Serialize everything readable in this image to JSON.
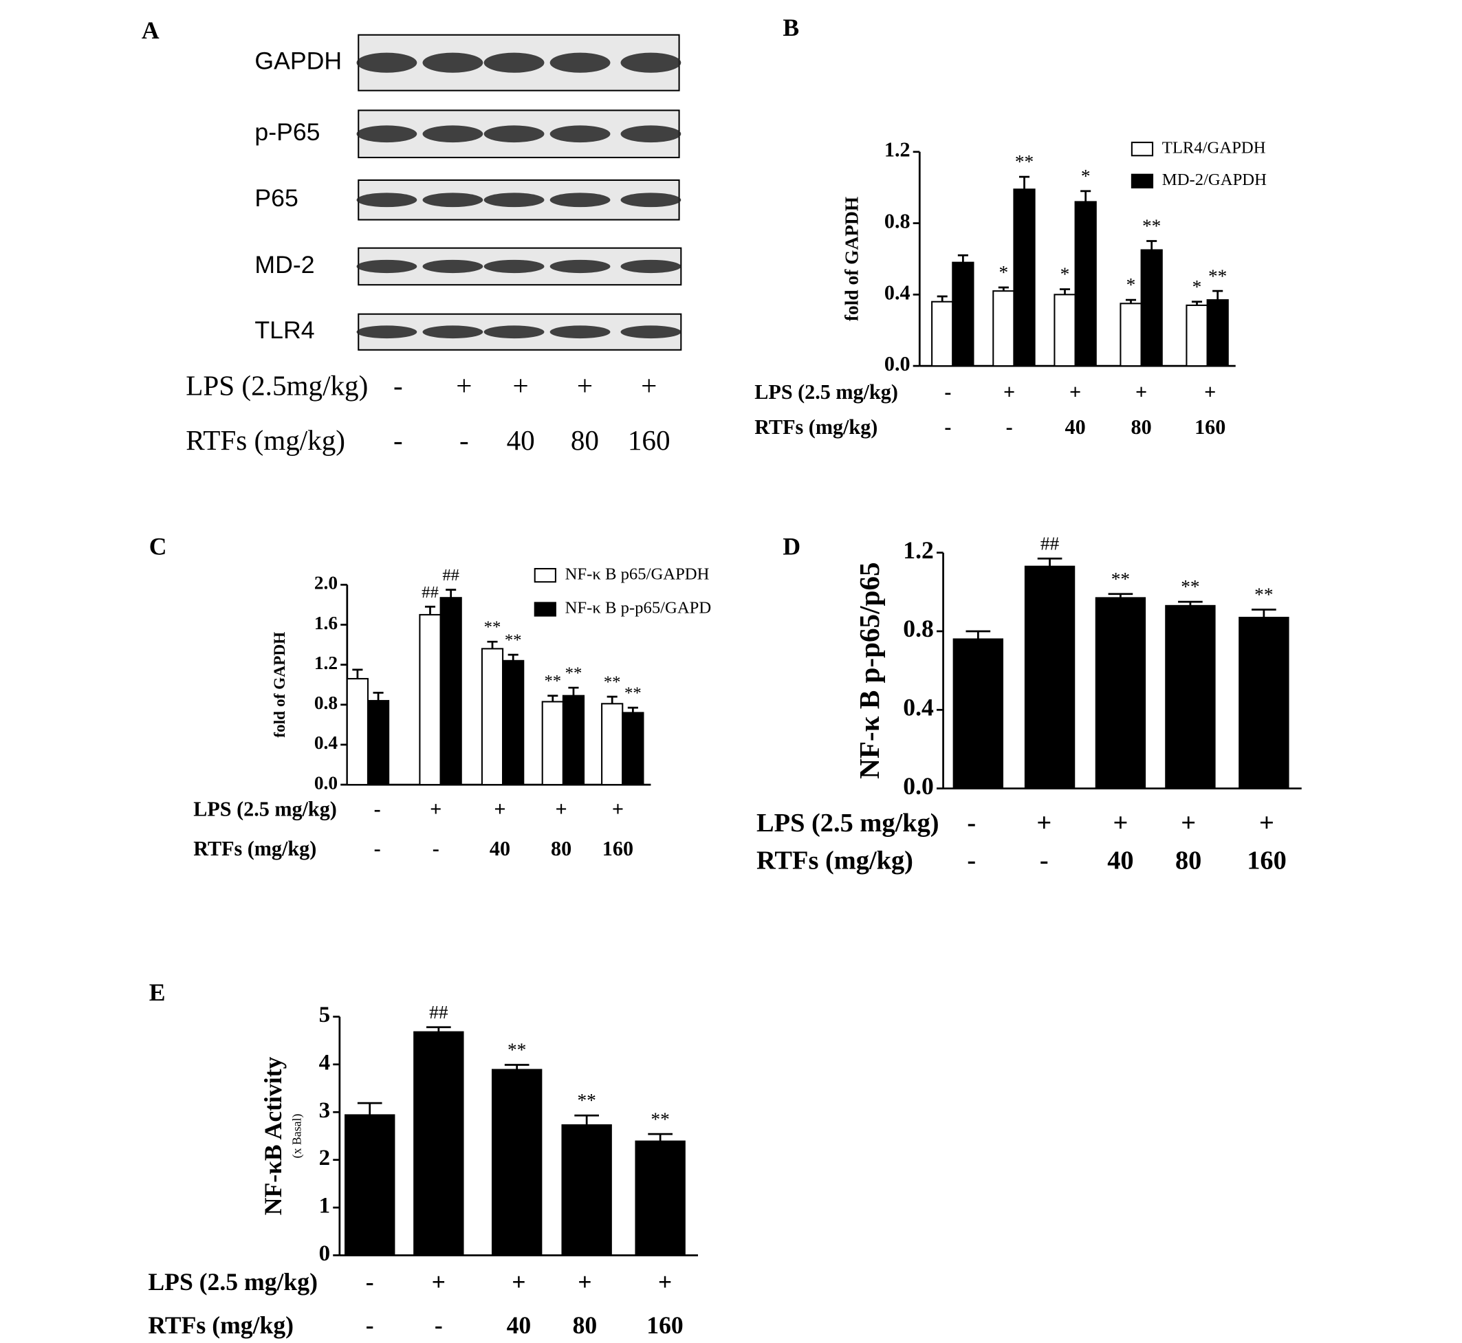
{
  "chart_data": [
    {
      "type": "blot",
      "panel": "A",
      "bands": [
        "GAPDH",
        "p-P65",
        "P65",
        "MD-2",
        "TLR4"
      ],
      "row_labels": [
        "LPS (2.5mg/kg)",
        "RTFs (mg/kg)"
      ],
      "rows": [
        [
          "-",
          "+",
          "+",
          "+",
          "+"
        ],
        [
          "-",
          "-",
          "40",
          "80",
          "160"
        ]
      ]
    },
    {
      "type": "bar",
      "panel": "B",
      "ylabel": "fold of GAPDH",
      "ylim": [
        0,
        1.2
      ],
      "yticks": [
        {
          "value": 0,
          "label": "0.0"
        },
        0.4,
        0.8,
        1.2
      ],
      "row_labels": [
        "LPS (2.5 mg/kg)",
        "RTFs (mg/kg)"
      ],
      "rows": [
        [
          "-",
          "+",
          "+",
          "+",
          "+"
        ],
        [
          "-",
          "-",
          "40",
          "80",
          "160"
        ]
      ],
      "series": [
        {
          "name": "TLR4/GAPDH",
          "color": "#ffffff",
          "values": [
            0.36,
            0.42,
            0.4,
            0.35,
            0.34
          ],
          "errors": [
            0.03,
            0.02,
            0.03,
            0.02,
            0.02
          ],
          "annotations": [
            null,
            "*",
            "*",
            "*",
            "*"
          ]
        },
        {
          "name": "MD-2/GAPDH",
          "color": "#000000",
          "values": [
            0.58,
            0.99,
            0.92,
            0.65,
            0.37
          ],
          "errors": [
            0.04,
            0.07,
            0.06,
            0.05,
            0.05
          ],
          "annotations": [
            null,
            "**",
            "*",
            "**",
            "**"
          ]
        }
      ]
    },
    {
      "type": "bar",
      "panel": "C",
      "ylabel": "fold of GAPDH",
      "ylim": [
        0,
        2.0
      ],
      "yticks": [
        {
          "value": 0,
          "label": "0.0"
        },
        0.4,
        0.8,
        1.2,
        1.6,
        {
          "value": 2,
          "label": "2.0"
        }
      ],
      "row_labels": [
        "LPS (2.5 mg/kg)",
        "RTFs (mg/kg)"
      ],
      "rows": [
        [
          "-",
          "+",
          "+",
          "+",
          "+"
        ],
        [
          "-",
          "-",
          "40",
          "80",
          "160"
        ]
      ],
      "series": [
        {
          "name": "NF-κ B p65/GAPDH",
          "color": "#ffffff",
          "values": [
            1.06,
            1.7,
            1.36,
            0.83,
            0.81
          ],
          "errors": [
            0.09,
            0.08,
            0.07,
            0.06,
            0.07
          ],
          "annotations": [
            null,
            "##",
            "**",
            "**",
            "**"
          ]
        },
        {
          "name": "NF-κ B p-p65/GAPD",
          "color": "#000000",
          "values": [
            0.84,
            1.87,
            1.24,
            0.89,
            0.72
          ],
          "errors": [
            0.08,
            0.08,
            0.06,
            0.08,
            0.05
          ],
          "annotations": [
            null,
            "##",
            "**",
            "**",
            "**"
          ]
        }
      ]
    },
    {
      "type": "bar",
      "panel": "D",
      "ylabel": "NF-κ B p-p65/p65",
      "ylim": [
        0,
        1.2
      ],
      "yticks": [
        {
          "value": 0,
          "label": "0.0"
        },
        0.4,
        0.8,
        1.2
      ],
      "row_labels": [
        "LPS (2.5 mg/kg)",
        "RTFs (mg/kg)"
      ],
      "rows": [
        [
          "-",
          "+",
          "+",
          "+",
          "+"
        ],
        [
          "-",
          "-",
          "40",
          "80",
          "160"
        ]
      ],
      "series": [
        {
          "color": "#000000",
          "values": [
            0.76,
            1.13,
            0.97,
            0.93,
            0.87
          ],
          "errors": [
            0.04,
            0.04,
            0.02,
            0.02,
            0.04
          ],
          "annotations": [
            null,
            "##",
            "**",
            "**",
            "**"
          ]
        }
      ]
    },
    {
      "type": "bar",
      "panel": "E",
      "ylabel": "NF-κB Activity",
      "ylabel_sub": "(x Basal)",
      "ylim": [
        0,
        5
      ],
      "yticks": [
        0,
        1,
        2,
        3,
        4,
        5
      ],
      "row_labels": [
        "LPS (2.5 mg/kg)",
        "RTFs (mg/kg)"
      ],
      "rows": [
        [
          "-",
          "+",
          "+",
          "+",
          "+"
        ],
        [
          "-",
          "-",
          "40",
          "80",
          "160"
        ]
      ],
      "series": [
        {
          "color": "#000000",
          "values": [
            2.94,
            4.68,
            3.89,
            2.73,
            2.39
          ],
          "errors": [
            0.25,
            0.1,
            0.1,
            0.2,
            0.15
          ],
          "annotations": [
            null,
            "##",
            "**",
            "**",
            "**"
          ]
        }
      ]
    }
  ]
}
